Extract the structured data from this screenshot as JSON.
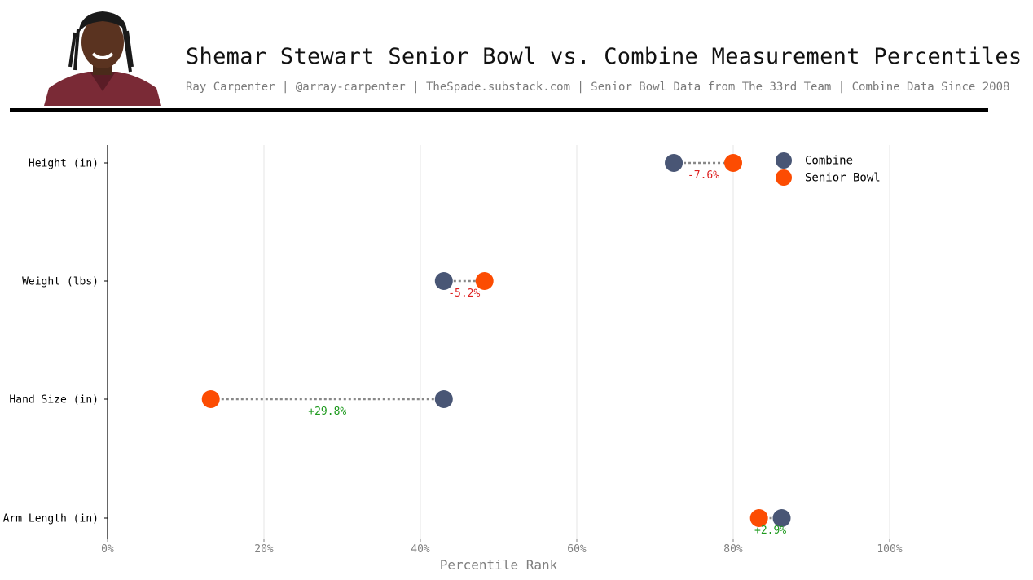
{
  "header": {
    "title": "Shemar Stewart Senior Bowl vs. Combine Measurement Percentiles",
    "subtitle": "Ray Carpenter | @array-carpenter | TheSpade.substack.com | Senior Bowl Data from The 33rd Team | Combine Data Since 2008"
  },
  "colors": {
    "combine": "#495675",
    "senior_bowl": "#fc4c02",
    "negative_diff": "#dd1f1f",
    "positive_diff": "#1e9a1e",
    "connector": "#888888",
    "grid": "#eeeeee",
    "axis": "#000000",
    "tick_label": "#7f7f7f"
  },
  "chart_data": {
    "type": "scatter",
    "xlabel": "Percentile Rank",
    "ylabel": "",
    "xlim": [
      0,
      100
    ],
    "x_ticks": [
      "0%",
      "20%",
      "40%",
      "60%",
      "80%",
      "100%"
    ],
    "x_tick_values": [
      0,
      20,
      40,
      60,
      80,
      100
    ],
    "grid": "vertical",
    "legend_position": "top-right",
    "categories": [
      "Height (in)",
      "Weight (lbs)",
      "Hand Size (in)",
      "Arm Length (in)"
    ],
    "series": [
      {
        "name": "Combine",
        "values": [
          72.4,
          43.0,
          43.0,
          86.2
        ]
      },
      {
        "name": "Senior Bowl",
        "values": [
          80.0,
          48.2,
          13.2,
          83.3
        ]
      }
    ],
    "annotations": [
      "-7.6%",
      "-5.2%",
      "+29.8%",
      "+2.9%"
    ]
  }
}
